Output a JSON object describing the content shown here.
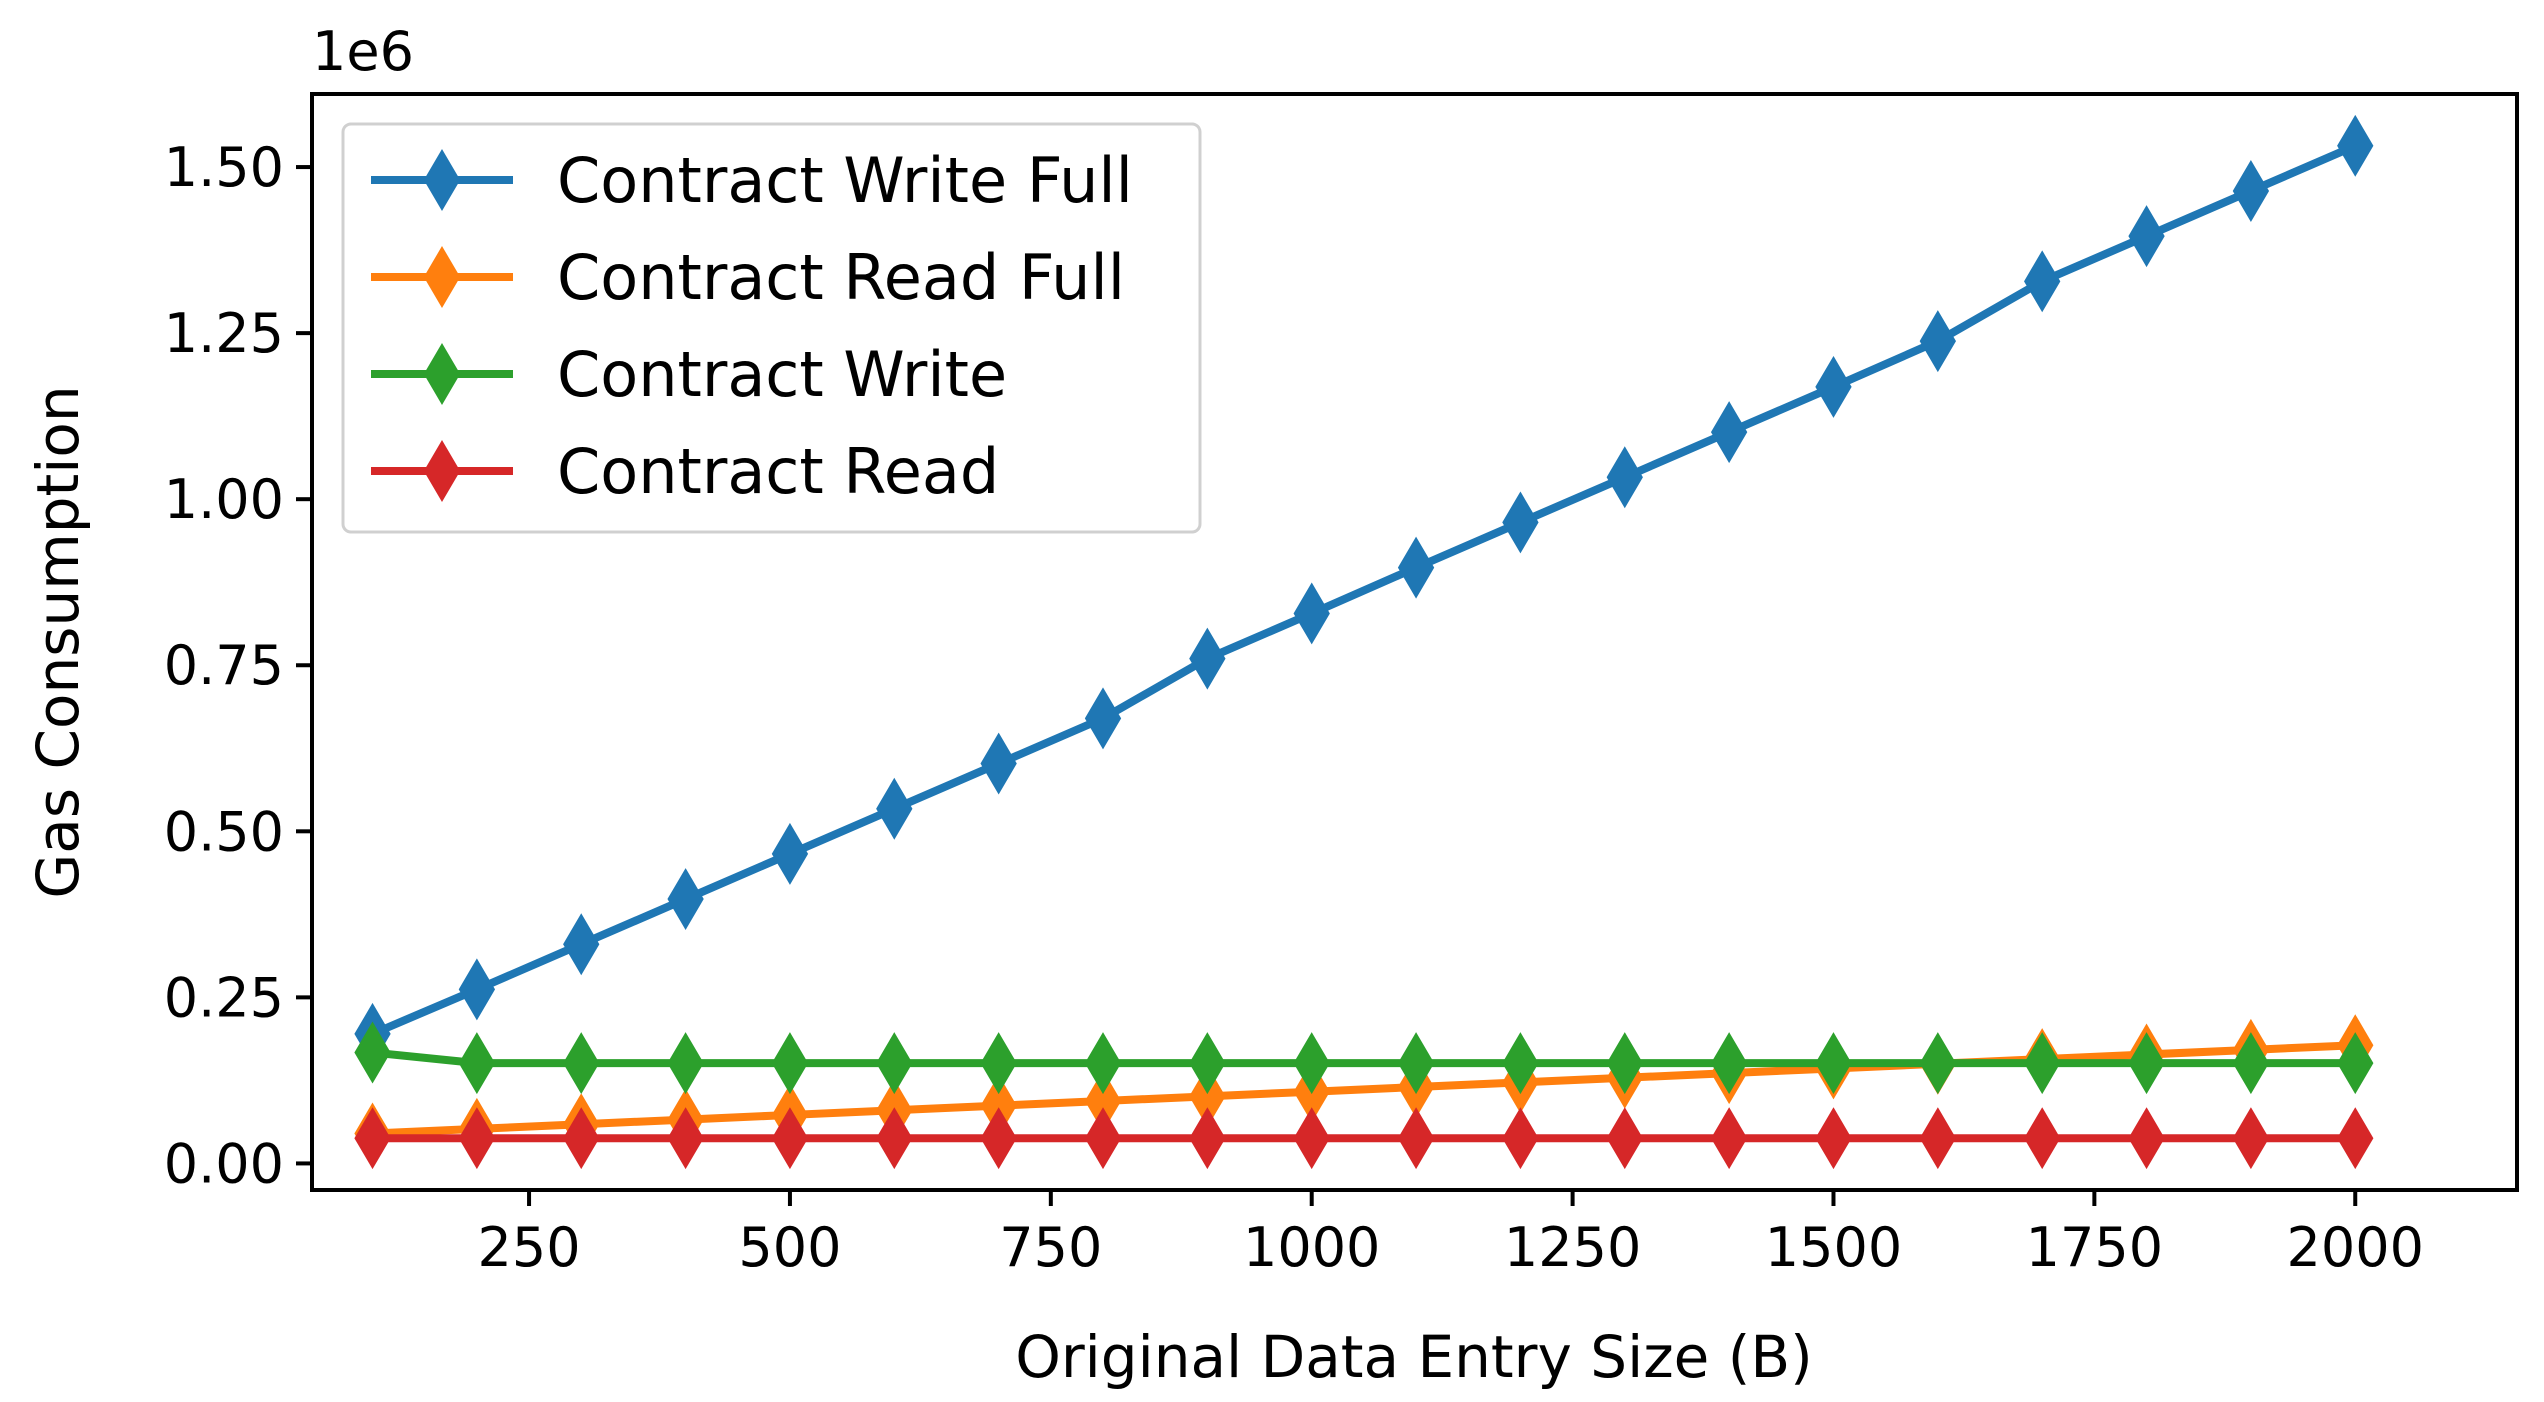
{
  "chart_data": {
    "type": "line",
    "xlabel": "Original Data Entry Size (B)",
    "ylabel": "Gas Consumption",
    "y_offset_label": "1e6",
    "y_scale": 1000000,
    "xlim": [
      42,
      2155
    ],
    "ylim": [
      -40000,
      1610000
    ],
    "x_ticks": [
      250,
      500,
      750,
      1000,
      1250,
      1500,
      1750,
      2000
    ],
    "x_tick_labels": [
      "250",
      "500",
      "750",
      "1000",
      "1250",
      "1500",
      "1750",
      "2000"
    ],
    "y_ticks": [
      0,
      250000,
      500000,
      750000,
      1000000,
      1250000,
      1500000
    ],
    "y_tick_labels": [
      "0.00",
      "0.25",
      "0.50",
      "0.75",
      "1.00",
      "1.25",
      "1.50"
    ],
    "grid": false,
    "legend_position": "top-left",
    "marker": "thin_diamond",
    "x": [
      100,
      200,
      300,
      400,
      500,
      600,
      700,
      800,
      900,
      1000,
      1100,
      1200,
      1300,
      1400,
      1500,
      1600,
      1700,
      1800,
      1900,
      2000
    ],
    "series": [
      {
        "name": "Contract Write Full",
        "color": "#1f77b4",
        "values": [
          195000,
          262000,
          330000,
          398000,
          466000,
          534000,
          602000,
          670000,
          760000,
          828000,
          897000,
          965000,
          1033000,
          1101000,
          1169000,
          1238000,
          1328000,
          1396000,
          1464000,
          1532000
        ]
      },
      {
        "name": "Contract Read Full",
        "color": "#ff7f0e",
        "values": [
          45000,
          52000,
          59000,
          66000,
          73000,
          80000,
          87000,
          94000,
          101000,
          108000,
          115000,
          122000,
          129000,
          136000,
          143000,
          150000,
          157000,
          164000,
          171000,
          178000
        ]
      },
      {
        "name": "Contract Write",
        "color": "#2ca02c",
        "values": [
          167000,
          151000,
          151000,
          151000,
          151000,
          151000,
          151000,
          151000,
          151000,
          151000,
          151000,
          151000,
          151000,
          151000,
          151000,
          151000,
          151000,
          151000,
          151000,
          151000
        ]
      },
      {
        "name": "Contract Read",
        "color": "#d62728",
        "values": [
          38000,
          38000,
          38000,
          38000,
          38000,
          38000,
          38000,
          38000,
          38000,
          38000,
          38000,
          38000,
          38000,
          38000,
          38000,
          38000,
          38000,
          38000,
          38000,
          38000
        ]
      }
    ]
  }
}
